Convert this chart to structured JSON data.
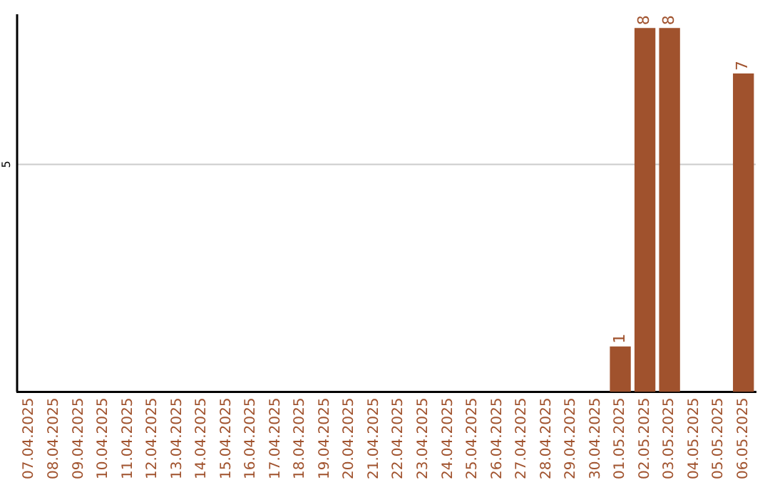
{
  "chart_data": {
    "type": "bar",
    "categories": [
      "07.04.2025",
      "08.04.2025",
      "09.04.2025",
      "10.04.2025",
      "11.04.2025",
      "12.04.2025",
      "13.04.2025",
      "14.04.2025",
      "15.04.2025",
      "16.04.2025",
      "17.04.2025",
      "18.04.2025",
      "19.04.2025",
      "20.04.2025",
      "21.04.2025",
      "22.04.2025",
      "23.04.2025",
      "24.04.2025",
      "25.04.2025",
      "26.04.2025",
      "27.04.2025",
      "28.04.2025",
      "29.04.2025",
      "30.04.2025",
      "01.05.2025",
      "02.05.2025",
      "03.05.2025",
      "04.05.2025",
      "05.05.2025",
      "06.05.2025"
    ],
    "values": [
      null,
      null,
      null,
      null,
      null,
      null,
      null,
      null,
      null,
      null,
      null,
      null,
      null,
      null,
      null,
      null,
      null,
      null,
      null,
      null,
      null,
      null,
      null,
      null,
      1,
      8,
      8,
      null,
      null,
      7
    ],
    "data_labels": true,
    "color": "#a0522d",
    "ylim": [
      0,
      8.3
    ],
    "ref_lines": [
      {
        "axis": "y",
        "value": 5,
        "label": "5",
        "color": "#cccccc"
      }
    ],
    "legend": false
  }
}
